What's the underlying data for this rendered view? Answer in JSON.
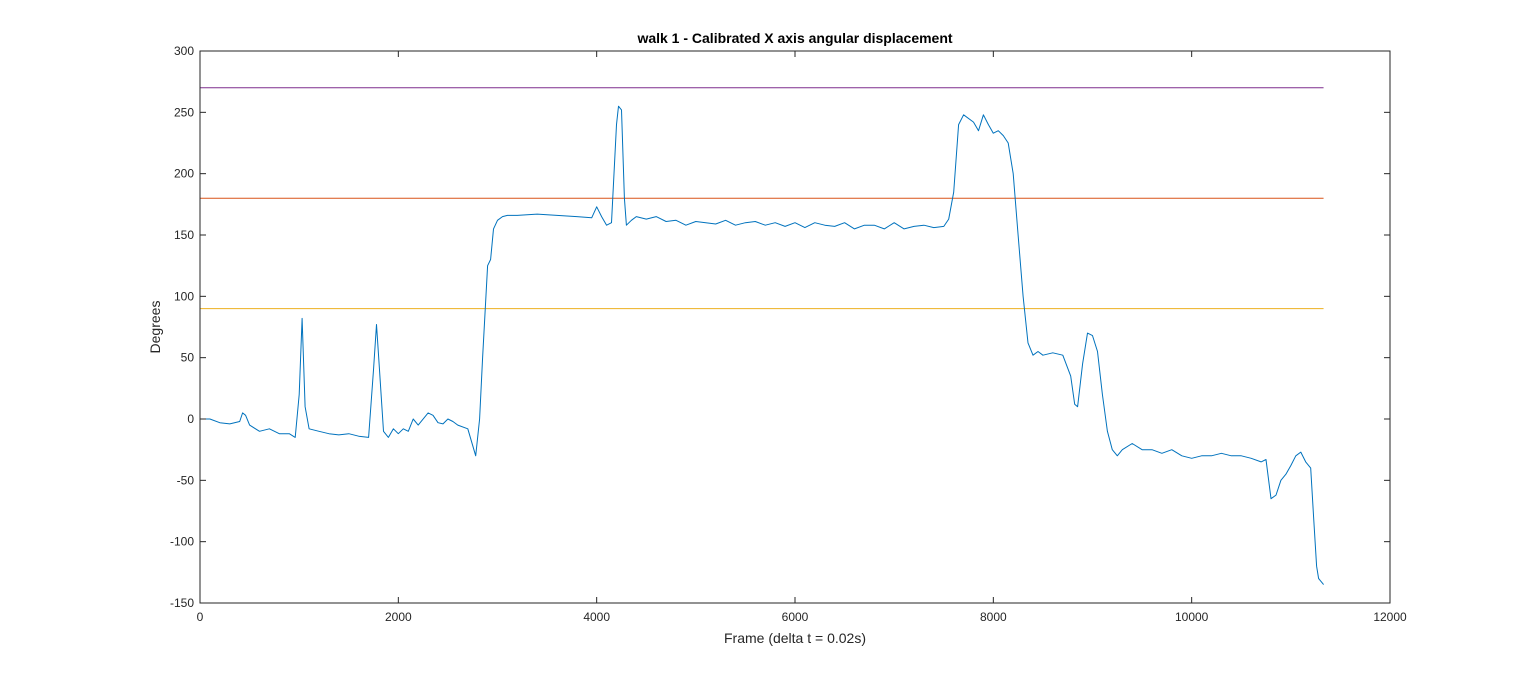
{
  "chart_data": {
    "type": "line",
    "title": "walk 1 - Calibrated X axis angular displacement",
    "xlabel": "Frame (delta t = 0.02s)",
    "ylabel": "Degrees",
    "xlim": [
      0,
      12000
    ],
    "ylim": [
      -150,
      300
    ],
    "xticks": [
      0,
      2000,
      4000,
      6000,
      8000,
      10000,
      12000
    ],
    "yticks": [
      -150,
      -100,
      -50,
      0,
      50,
      100,
      150,
      200,
      250,
      300
    ],
    "grid": false,
    "legend": "none",
    "series": [
      {
        "color": "#0072BD",
        "x": [
          0,
          100,
          200,
          300,
          400,
          430,
          460,
          500,
          600,
          700,
          800,
          900,
          960,
          1000,
          1030,
          1060,
          1100,
          1200,
          1300,
          1400,
          1500,
          1600,
          1700,
          1750,
          1780,
          1810,
          1850,
          1900,
          1950,
          2000,
          2050,
          2100,
          2150,
          2200,
          2300,
          2350,
          2400,
          2450,
          2500,
          2550,
          2600,
          2700,
          2780,
          2820,
          2850,
          2900,
          2930,
          2960,
          3000,
          3050,
          3100,
          3200,
          3400,
          3600,
          3800,
          3950,
          4000,
          4050,
          4100,
          4150,
          4200,
          4220,
          4250,
          4280,
          4300,
          4350,
          4400,
          4500,
          4600,
          4700,
          4800,
          4900,
          5000,
          5100,
          5200,
          5300,
          5400,
          5500,
          5600,
          5700,
          5800,
          5900,
          6000,
          6100,
          6200,
          6300,
          6400,
          6500,
          6600,
          6700,
          6800,
          6900,
          7000,
          7100,
          7200,
          7300,
          7400,
          7500,
          7550,
          7600,
          7650,
          7700,
          7800,
          7850,
          7900,
          7950,
          8000,
          8050,
          8100,
          8150,
          8200,
          8250,
          8300,
          8350,
          8400,
          8450,
          8500,
          8600,
          8700,
          8780,
          8820,
          8850,
          8900,
          8950,
          9000,
          9050,
          9100,
          9150,
          9200,
          9250,
          9300,
          9400,
          9500,
          9600,
          9700,
          9800,
          9900,
          10000,
          10100,
          10200,
          10300,
          10400,
          10500,
          10600,
          10700,
          10750,
          10800,
          10850,
          10900,
          10950,
          11000,
          11050,
          11100,
          11150,
          11200,
          11230,
          11260,
          11280,
          11300,
          11330
        ],
        "y": [
          0,
          0,
          -3,
          -4,
          -2,
          5,
          3,
          -5,
          -10,
          -8,
          -12,
          -12,
          -15,
          20,
          82,
          10,
          -8,
          -10,
          -12,
          -13,
          -12,
          -14,
          -15,
          40,
          77,
          40,
          -10,
          -15,
          -8,
          -12,
          -8,
          -10,
          0,
          -5,
          5,
          3,
          -3,
          -4,
          0,
          -2,
          -5,
          -8,
          -30,
          0,
          50,
          125,
          130,
          155,
          162,
          165,
          166,
          166,
          167,
          166,
          165,
          164,
          173,
          165,
          158,
          160,
          240,
          255,
          252,
          180,
          158,
          162,
          165,
          163,
          165,
          161,
          162,
          158,
          161,
          160,
          159,
          162,
          158,
          160,
          161,
          158,
          160,
          157,
          160,
          156,
          160,
          158,
          157,
          160,
          155,
          158,
          158,
          155,
          160,
          155,
          157,
          158,
          156,
          157,
          163,
          185,
          240,
          248,
          242,
          235,
          248,
          240,
          233,
          235,
          231,
          225,
          200,
          150,
          100,
          62,
          52,
          55,
          52,
          54,
          52,
          35,
          12,
          10,
          45,
          70,
          68,
          55,
          20,
          -10,
          -25,
          -30,
          -25,
          -20,
          -25,
          -25,
          -28,
          -25,
          -30,
          -32,
          -30,
          -30,
          -28,
          -30,
          -30,
          -32,
          -35,
          -33,
          -65,
          -62,
          -50,
          -45,
          -38,
          -30,
          -27,
          -35,
          -40,
          -80,
          -120,
          -130,
          -132,
          -135
        ]
      }
    ],
    "reference_lines": [
      {
        "y": 270,
        "color": "#7E2F8E",
        "x_start": 0,
        "x_end": 11330
      },
      {
        "y": 180,
        "color": "#D95319",
        "x_start": 0,
        "x_end": 11330
      },
      {
        "y": 90,
        "color": "#EDB120",
        "x_start": 0,
        "x_end": 11330
      }
    ]
  }
}
